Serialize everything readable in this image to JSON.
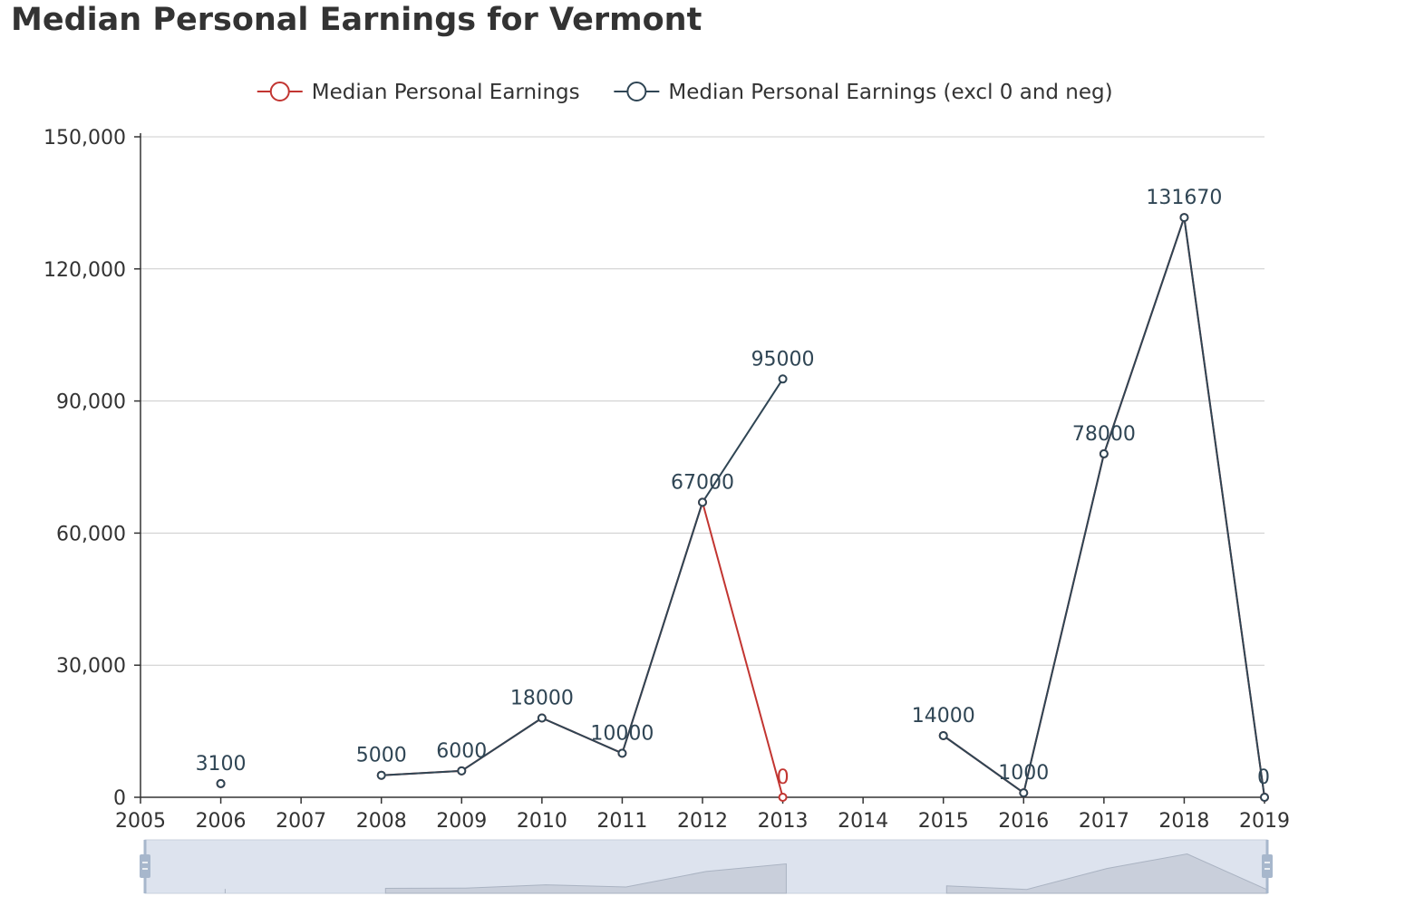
{
  "title": "Median Personal Earnings for Vermont",
  "legend": {
    "items": [
      {
        "label": "Median Personal Earnings",
        "color": "#c23531"
      },
      {
        "label": "Median Personal Earnings (excl 0 and neg)",
        "color": "#2f4554"
      }
    ]
  },
  "chart_data": {
    "type": "line",
    "title": "Median Personal Earnings for Vermont",
    "xlabel": "",
    "ylabel": "",
    "x_ticks": [
      "2005",
      "2006",
      "2007",
      "2008",
      "2009",
      "2010",
      "2011",
      "2012",
      "2013",
      "2014",
      "2015",
      "2016",
      "2017",
      "2018",
      "2019"
    ],
    "y_ticks": [
      "0",
      "30,000",
      "60,000",
      "90,000",
      "120,000",
      "150,000"
    ],
    "xlim": [
      2005,
      2019
    ],
    "ylim": [
      0,
      150000
    ],
    "grid": true,
    "legend_position": "top-center",
    "series": [
      {
        "name": "Median Personal Earnings",
        "color": "#c23531",
        "points": [
          {
            "x": 2006,
            "y": 3100
          },
          {
            "x": 2008,
            "y": 5000
          },
          {
            "x": 2009,
            "y": 6000
          },
          {
            "x": 2010,
            "y": 18000
          },
          {
            "x": 2011,
            "y": 10000
          },
          {
            "x": 2012,
            "y": 67000
          },
          {
            "x": 2013,
            "y": 0
          },
          {
            "x": 2015,
            "y": 14000
          },
          {
            "x": 2016,
            "y": 1000
          },
          {
            "x": 2017,
            "y": 78000
          },
          {
            "x": 2018,
            "y": 131670
          },
          {
            "x": 2019,
            "y": 0
          }
        ],
        "labels": [
          {
            "x": 2013,
            "y": 0,
            "text": "0"
          }
        ]
      },
      {
        "name": "Median Personal Earnings (excl 0 and neg)",
        "color": "#2f4554",
        "points": [
          {
            "x": 2006,
            "y": 3100
          },
          {
            "x": 2008,
            "y": 5000
          },
          {
            "x": 2009,
            "y": 6000
          },
          {
            "x": 2010,
            "y": 18000
          },
          {
            "x": 2011,
            "y": 10000
          },
          {
            "x": 2012,
            "y": 67000
          },
          {
            "x": 2013,
            "y": 95000
          },
          {
            "x": 2015,
            "y": 14000
          },
          {
            "x": 2016,
            "y": 1000
          },
          {
            "x": 2017,
            "y": 78000
          },
          {
            "x": 2018,
            "y": 131670
          },
          {
            "x": 2019,
            "y": 0
          }
        ],
        "labels": [
          {
            "x": 2006,
            "y": 3100,
            "text": "3100"
          },
          {
            "x": 2008,
            "y": 5000,
            "text": "5000"
          },
          {
            "x": 2009,
            "y": 6000,
            "text": "6000"
          },
          {
            "x": 2010,
            "y": 18000,
            "text": "18000"
          },
          {
            "x": 2011,
            "y": 10000,
            "text": "10000"
          },
          {
            "x": 2012,
            "y": 67000,
            "text": "67000"
          },
          {
            "x": 2013,
            "y": 95000,
            "text": "95000"
          },
          {
            "x": 2015,
            "y": 14000,
            "text": "14000"
          },
          {
            "x": 2016,
            "y": 1000,
            "text": "1000"
          },
          {
            "x": 2017,
            "y": 78000,
            "text": "78000"
          },
          {
            "x": 2018,
            "y": 131670,
            "text": "131670"
          },
          {
            "x": 2019,
            "y": 0,
            "text": "0"
          }
        ]
      }
    ],
    "datazoom": {
      "start": 0,
      "end": 100
    }
  }
}
